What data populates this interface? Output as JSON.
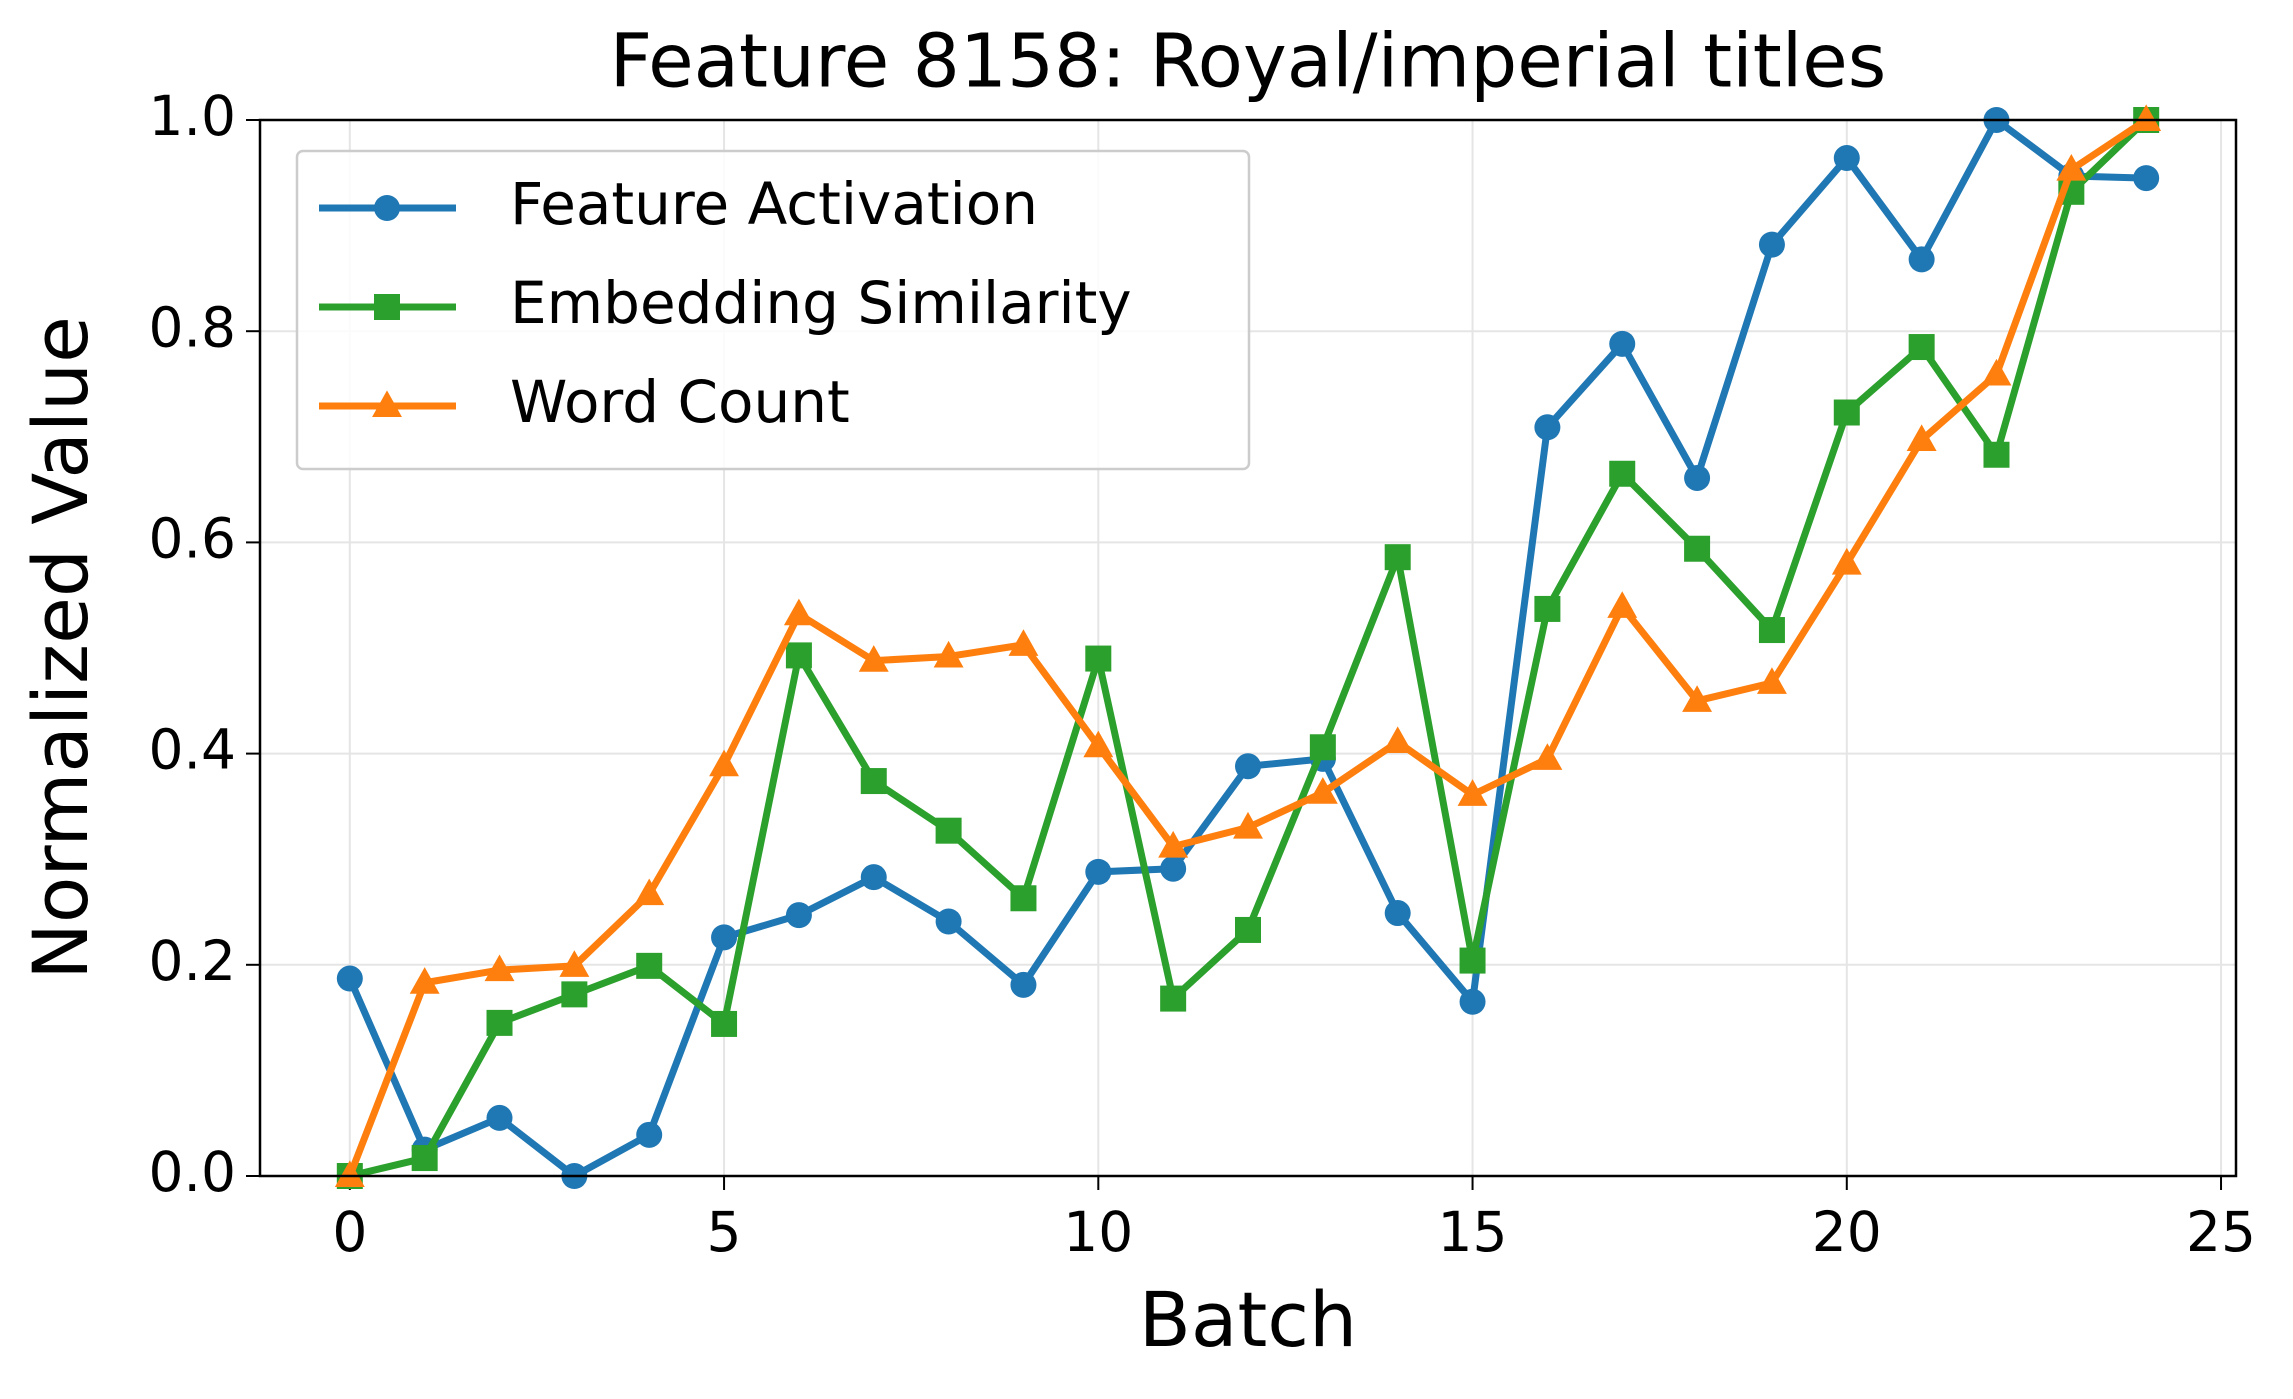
{
  "chart_data": {
    "type": "line",
    "title": "Feature 8158: Royal/imperial titles",
    "x_label": "Batch",
    "y_label": "Normalized Value",
    "x": [
      0,
      1,
      2,
      3,
      4,
      5,
      6,
      7,
      8,
      9,
      10,
      11,
      12,
      13,
      14,
      15,
      16,
      17,
      18,
      19,
      20,
      21,
      22,
      23,
      24
    ],
    "series": [
      {
        "name": "Feature Activation",
        "color": "#1f77b4",
        "marker": "circle",
        "values": [
          0.187,
          0.025,
          0.055,
          0.0,
          0.039,
          0.226,
          0.247,
          0.283,
          0.241,
          0.181,
          0.288,
          0.291,
          0.388,
          0.395,
          0.249,
          0.165,
          0.709,
          0.788,
          0.661,
          0.882,
          0.964,
          0.868,
          1.0,
          0.947,
          0.945
        ]
      },
      {
        "name": "Embedding Similarity",
        "color": "#2ca02c",
        "marker": "square",
        "values": [
          0.0,
          0.017,
          0.145,
          0.172,
          0.199,
          0.144,
          0.493,
          0.374,
          0.327,
          0.263,
          0.49,
          0.168,
          0.233,
          0.406,
          0.586,
          0.204,
          0.537,
          0.665,
          0.594,
          0.517,
          0.723,
          0.785,
          0.683,
          0.932,
          1.0
        ]
      },
      {
        "name": "Word Count",
        "color": "#ff7f0e",
        "marker": "triangle",
        "values": [
          0.0,
          0.183,
          0.195,
          0.199,
          0.267,
          0.389,
          0.532,
          0.488,
          0.492,
          0.503,
          0.407,
          0.312,
          0.33,
          0.363,
          0.411,
          0.361,
          0.395,
          0.539,
          0.45,
          0.467,
          0.58,
          0.697,
          0.759,
          0.953,
          1.0
        ]
      }
    ],
    "xlim": [
      -1.2,
      25.2
    ],
    "xticks": [
      0,
      5,
      10,
      15,
      20,
      25
    ],
    "ylim": [
      0,
      1
    ],
    "yticks": [
      {
        "value": 0,
        "label": "0.0"
      },
      0.2,
      0.4,
      0.6,
      0.8,
      {
        "value": 1,
        "label": "1.0"
      }
    ],
    "grid": true,
    "legend": "upper-left"
  }
}
